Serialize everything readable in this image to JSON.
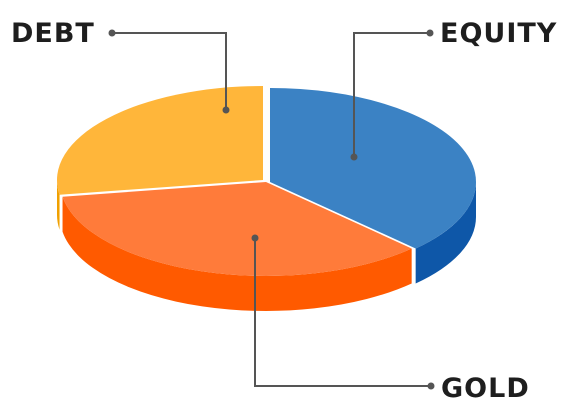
{
  "chart_data": {
    "type": "pie",
    "style": "3d-exploded-disc",
    "title": "",
    "start_angle": "12 o'clock",
    "direction": "clockwise",
    "slices": [
      {
        "name": "EQUITY",
        "value": 37.5,
        "top_color": "#3b82c4",
        "side_color": "#0e57a8"
      },
      {
        "name": "GOLD",
        "value": 35.0,
        "top_color": "#ff7b3a",
        "side_color": "#ff5a00"
      },
      {
        "name": "DEBT",
        "value": 27.5,
        "top_color": "#ffb63a",
        "side_color": "#f0a000"
      }
    ],
    "leader_line_color": "#555555",
    "background": "#ffffff"
  }
}
